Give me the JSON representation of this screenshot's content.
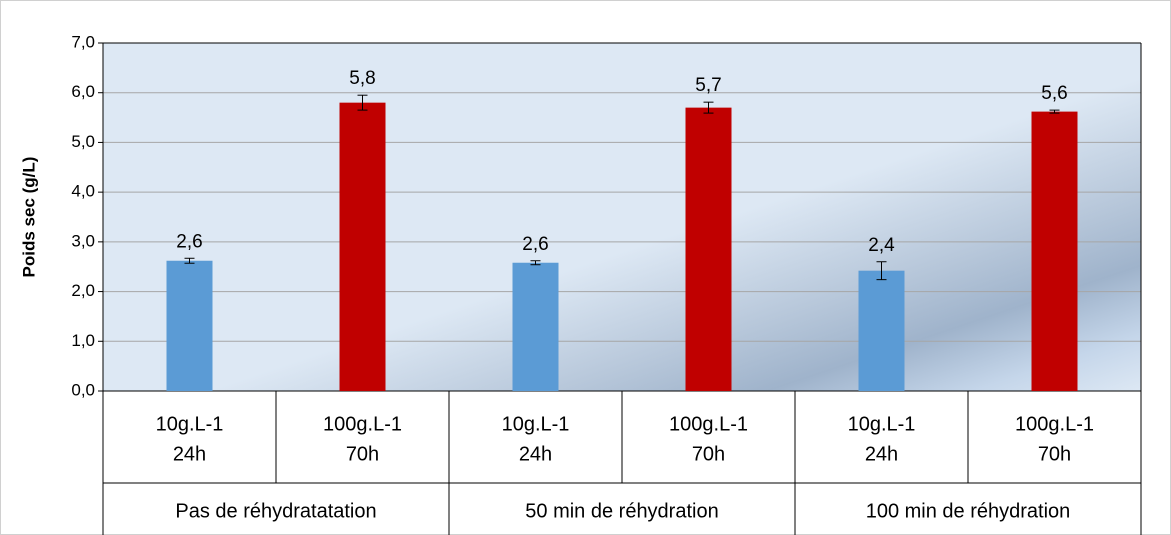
{
  "chart_data": {
    "type": "bar",
    "y_label": "Poids sec (g/L)",
    "categories": [
      [
        "10g.L-1",
        "24h"
      ],
      [
        "100g.L-1",
        "70h"
      ],
      [
        "10g.L-1",
        "24h"
      ],
      [
        "100g.L-1",
        "70h"
      ],
      [
        "10g.L-1",
        "24h"
      ],
      [
        "100g.L-1",
        "70h"
      ]
    ],
    "groups": [
      "Pas de réhydratatation",
      "50 min de réhydration",
      "100 min de réhydration"
    ],
    "values": [
      2.62,
      5.8,
      2.58,
      5.7,
      2.42,
      5.62
    ],
    "value_labels": [
      "2,6",
      "5,8",
      "2,6",
      "5,7",
      "2,4",
      "5,6"
    ],
    "errors": [
      0.05,
      0.15,
      0.04,
      0.11,
      0.18,
      0.03
    ],
    "colors": [
      "#5b9bd5",
      "#c00000",
      "#5b9bd5",
      "#c00000",
      "#5b9bd5",
      "#c00000"
    ],
    "ylim": [
      0,
      7
    ],
    "yticks": [
      {
        "value": 0,
        "label": "0,0"
      },
      {
        "value": 1,
        "label": "1,0"
      },
      {
        "value": 2,
        "label": "2,0"
      },
      {
        "value": 3,
        "label": "3,0"
      },
      {
        "value": 4,
        "label": "4,0"
      },
      {
        "value": 5,
        "label": "5,0"
      },
      {
        "value": 6,
        "label": "6,0"
      },
      {
        "value": 7,
        "label": "7,0"
      }
    ],
    "grid": true
  }
}
